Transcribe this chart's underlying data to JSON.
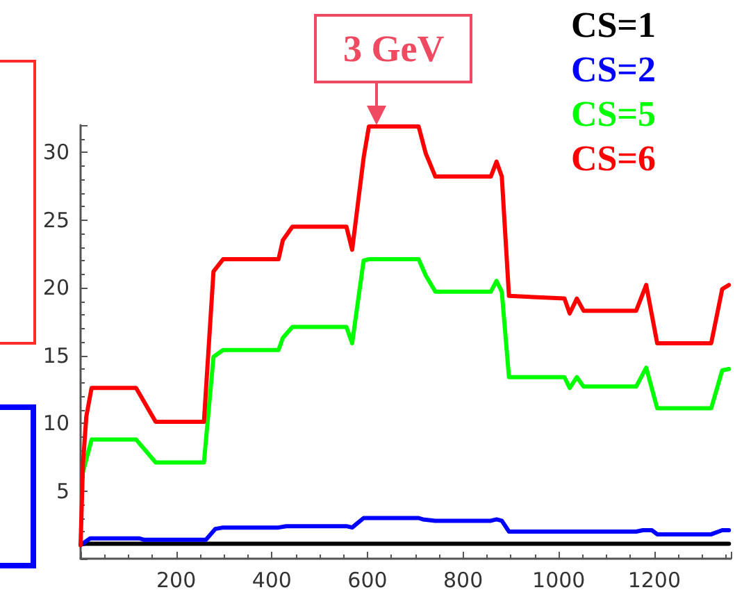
{
  "chart_data": {
    "type": "line",
    "xlim": [
      0,
      1360
    ],
    "xticks": [
      200,
      400,
      600,
      800,
      1000,
      1200
    ],
    "ylim": [
      0,
      32
    ],
    "yticks": [
      5,
      10,
      15,
      20,
      25,
      30
    ],
    "grid": false,
    "legend": "top right",
    "marker": "none",
    "line_style": "solid",
    "annotations": [
      {
        "text": "3 GeV",
        "x": 620,
        "y": 32
      }
    ],
    "series": [
      {
        "name": "CS=1",
        "color": "#000000",
        "x": [
          0,
          1356
        ],
        "values": [
          1.1,
          1.1
        ]
      },
      {
        "name": "CS=2",
        "color": "#0000ff",
        "x": [
          0,
          20,
          123,
          132,
          262,
          282,
          298,
          414,
          430,
          556,
          568,
          592,
          707,
          716,
          742,
          858,
          870,
          881,
          896,
          1162,
          1176,
          1195,
          1206,
          1319,
          1342,
          1356
        ],
        "values": [
          1,
          1.5,
          1.5,
          1.4,
          1.4,
          2.2,
          2.3,
          2.3,
          2.4,
          2.4,
          2.3,
          3,
          3,
          2.9,
          2.8,
          2.8,
          2.9,
          2.8,
          2,
          2,
          2.1,
          2.1,
          1.8,
          1.8,
          2.1,
          2.1
        ]
      },
      {
        "name": "CS=5",
        "color": "#00ff00",
        "x": [
          5,
          23,
          116,
          157,
          258,
          278,
          298,
          414,
          423,
          443,
          556,
          568,
          592,
          603,
          707,
          722,
          742,
          858,
          870,
          881,
          896,
          1012,
          1023,
          1038,
          1052,
          1162,
          1183,
          1206,
          1319,
          1342,
          1356
        ],
        "values": [
          6.4,
          8.8,
          8.8,
          7.1,
          7.1,
          14.9,
          15.4,
          15.4,
          16.3,
          17.1,
          17.1,
          15.9,
          22,
          22.1,
          22.1,
          20.9,
          19.7,
          19.7,
          20.5,
          19.7,
          13.4,
          13.4,
          12.6,
          13.4,
          12.7,
          12.7,
          14.1,
          11.1,
          11.1,
          13.9,
          14
        ]
      },
      {
        "name": "CS=6",
        "color": "#ff0000",
        "x": [
          0,
          5,
          12,
          23,
          116,
          157,
          258,
          278,
          298,
          414,
          423,
          443,
          556,
          568,
          592,
          603,
          707,
          722,
          742,
          858,
          870,
          881,
          896,
          1012,
          1023,
          1038,
          1052,
          1162,
          1183,
          1206,
          1319,
          1342,
          1356
        ],
        "values": [
          1,
          7,
          10.5,
          12.6,
          12.6,
          10.1,
          10.1,
          21.2,
          22.1,
          22.1,
          23.5,
          24.5,
          24.5,
          22.8,
          29.6,
          31.9,
          31.9,
          29.9,
          28.2,
          28.2,
          29.3,
          28.2,
          19.4,
          19.2,
          18.1,
          19.2,
          18.3,
          18.3,
          20.2,
          15.9,
          15.9,
          19.9,
          20.2
        ]
      }
    ]
  }
}
